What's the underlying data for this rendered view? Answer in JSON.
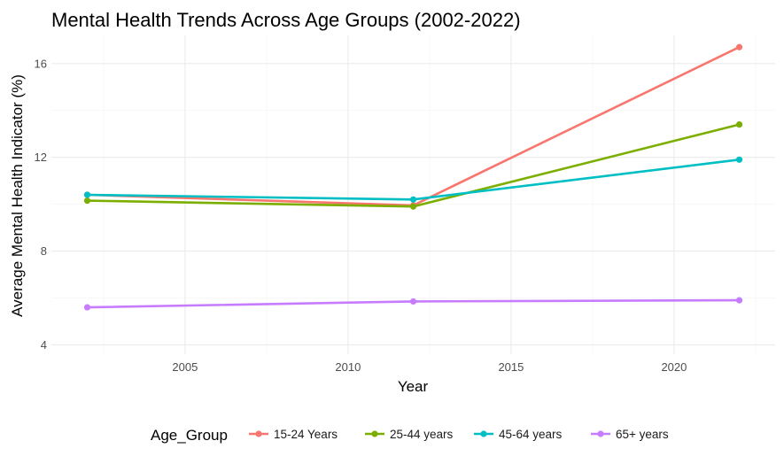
{
  "chart_data": {
    "type": "line",
    "title": "Mental Health Trends Across Age Groups (2002-2022)",
    "xlabel": "Year",
    "ylabel": "Average Mental Health Indicator (%)",
    "x": [
      2002,
      2012,
      2022
    ],
    "xlim": [
      2000.9,
      2023.1
    ],
    "ylim": [
      3.6,
      17.2
    ],
    "xticks": [
      2005,
      2010,
      2015,
      2020
    ],
    "yticks": [
      4,
      8,
      12,
      16
    ],
    "grid": true,
    "legend_title": "Age_Group",
    "legend_position": "bottom",
    "series": [
      {
        "name": "15-24 Years",
        "color": "#F8766D",
        "values": [
          10.4,
          9.95,
          16.7
        ]
      },
      {
        "name": "25-44 years",
        "color": "#7CAE00",
        "values": [
          10.15,
          9.9,
          13.4
        ]
      },
      {
        "name": "45-64 years",
        "color": "#00BFC4",
        "values": [
          10.4,
          10.2,
          11.9
        ]
      },
      {
        "name": "65+ years",
        "color": "#C77CFF",
        "values": [
          5.6,
          5.85,
          5.9
        ]
      }
    ]
  }
}
